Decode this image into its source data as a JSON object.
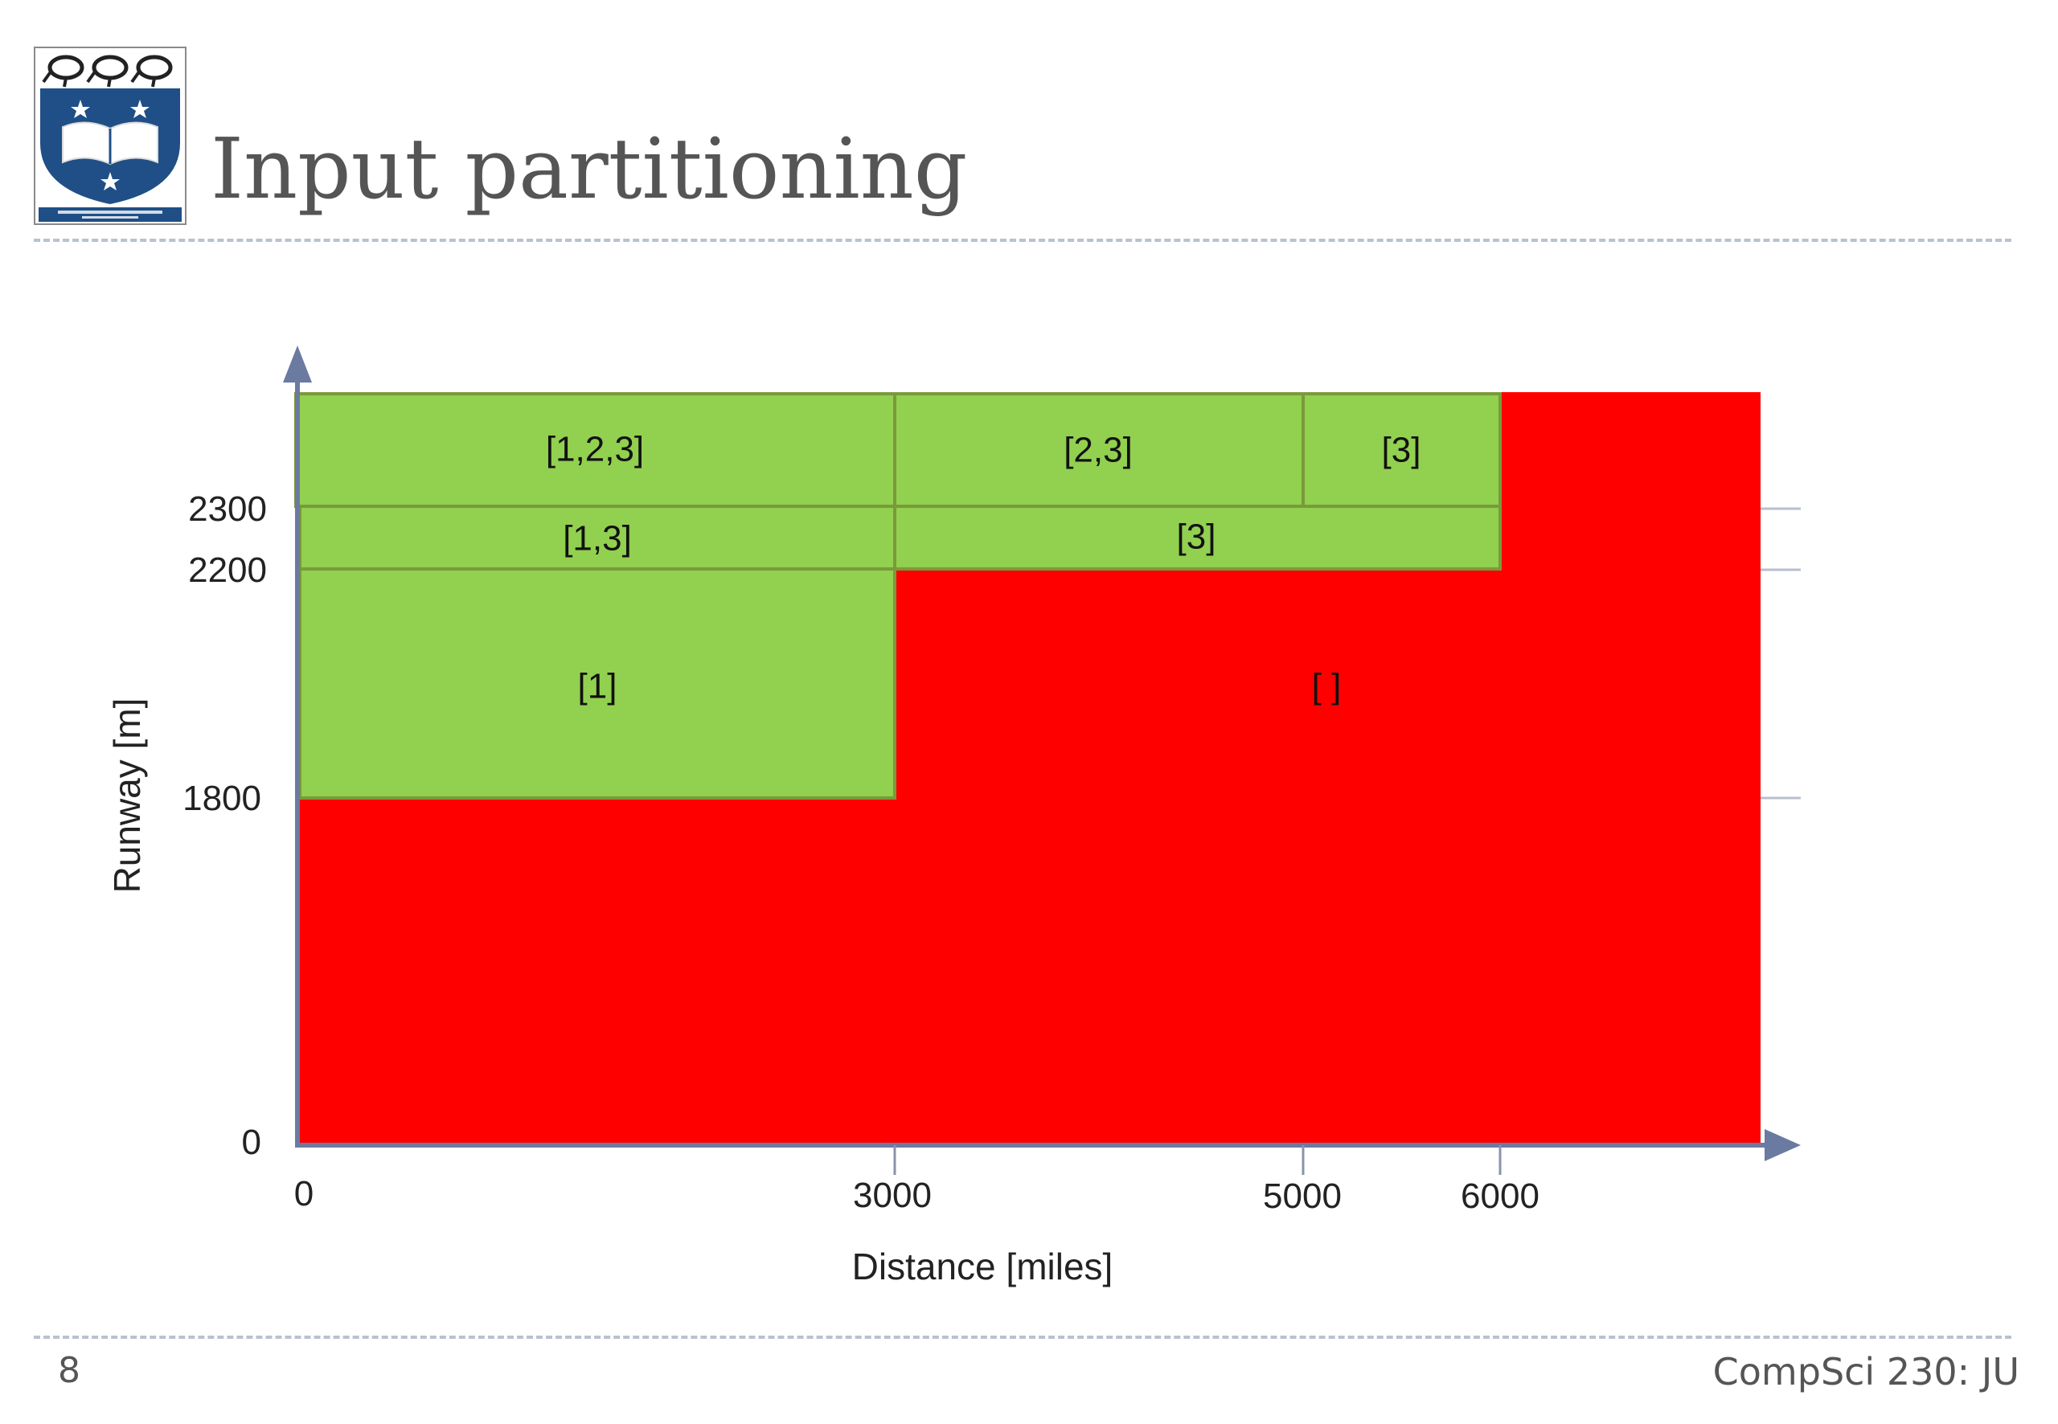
{
  "slide": {
    "title": "Input partitioning",
    "number": "8",
    "footer": "CompSci 230: JU",
    "logo_icon": "university-of-auckland-crest-icon"
  },
  "diagram": {
    "x_axis": {
      "label": "Distance [miles]",
      "ticks": [
        {
          "value": 0,
          "label": "0"
        },
        {
          "value": 3000,
          "label": "3000"
        },
        {
          "value": 5000,
          "label": "5000"
        },
        {
          "value": 6000,
          "label": "6000"
        }
      ]
    },
    "y_axis": {
      "label": "Runway [m]",
      "ticks": [
        {
          "value": 0,
          "label": "0"
        },
        {
          "value": 1800,
          "label": "1800"
        },
        {
          "value": 2200,
          "label": "2200"
        },
        {
          "value": 2300,
          "label": "2300"
        }
      ]
    },
    "regions": [
      {
        "label": "[1,2,3]",
        "color": "green"
      },
      {
        "label": "[2,3]",
        "color": "green"
      },
      {
        "label": "[3]",
        "color": "green"
      },
      {
        "label": "[1,3]",
        "color": "green"
      },
      {
        "label": "[3]",
        "color": "green"
      },
      {
        "label": "[1]",
        "color": "green"
      },
      {
        "label": "[ ]",
        "color": "red"
      }
    ],
    "colors": {
      "valid": "#92d050",
      "invalid": "#ff0000",
      "region_border": "#7a9a3a",
      "axis": "#6b7aa1",
      "grid": "#b8bfcc"
    }
  }
}
